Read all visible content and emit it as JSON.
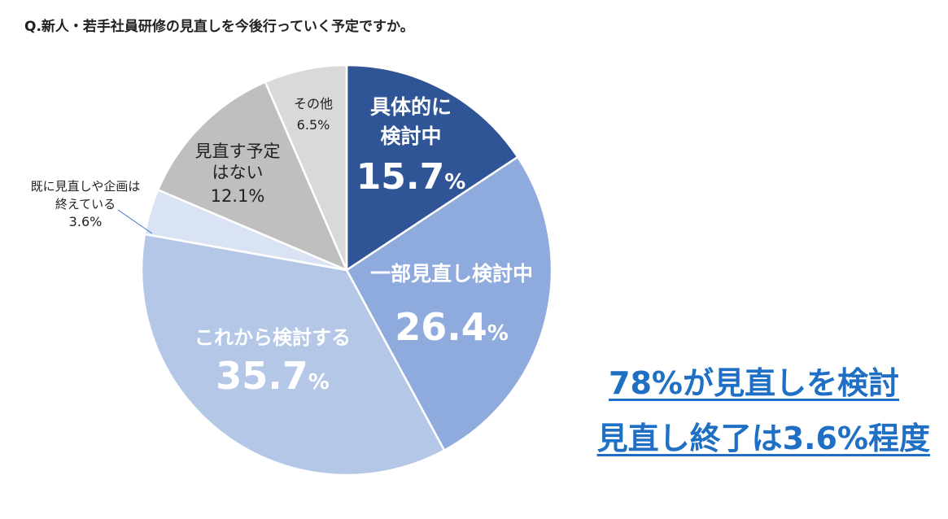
{
  "title": "Q.新人・若手社員研修の見直しを今後行っていく予定ですか。",
  "chart_data": {
    "type": "pie",
    "start_angle_deg": 0,
    "direction": "clockwise",
    "slices": [
      {
        "name_lines": [
          "具体的に",
          "検討中"
        ],
        "value": 15.7,
        "value_label": "15.7",
        "unit": "%",
        "color": "#2f5597"
      },
      {
        "name_lines": [
          "一部見直し検討中"
        ],
        "value": 26.4,
        "value_label": "26.4",
        "unit": "%",
        "color": "#8faadc"
      },
      {
        "name_lines": [
          "これから検討する"
        ],
        "value": 35.7,
        "value_label": "35.7",
        "unit": "%",
        "color": "#b4c7e7"
      },
      {
        "name_lines": [
          "既に見直しや企画は",
          "終えている"
        ],
        "value": 3.6,
        "value_label": "3.6%",
        "unit": "",
        "color": "#dae3f3"
      },
      {
        "name_lines": [
          "見直す予定",
          "はない"
        ],
        "value": 12.1,
        "value_label": "12.1%",
        "unit": "",
        "color": "#bfbfbf"
      },
      {
        "name_lines": [
          "その他"
        ],
        "value": 6.5,
        "value_label": "6.5%",
        "unit": "",
        "color": "#d9d9d9"
      }
    ]
  },
  "callout": {
    "line1": "78%が見直しを検討",
    "line2": "見直し終了は3.6%程度",
    "color": "#1f6fc4"
  }
}
